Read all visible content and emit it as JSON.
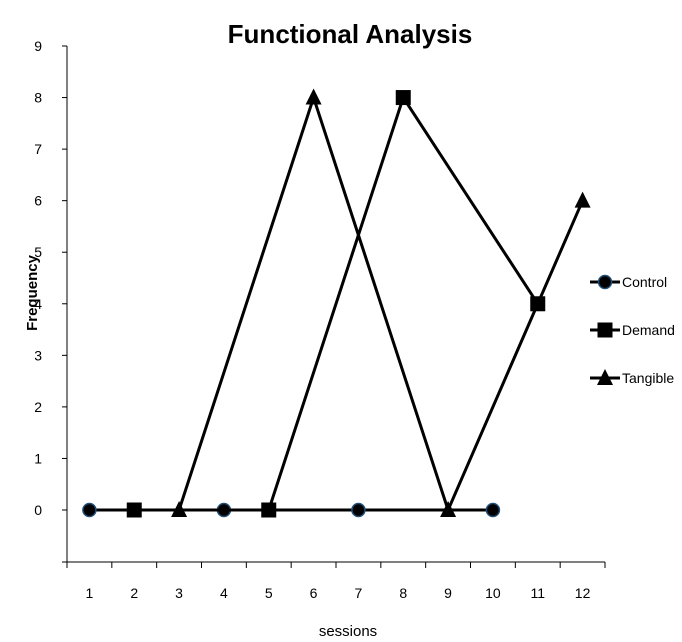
{
  "chart_data": {
    "type": "line",
    "title": "Functional Analysis",
    "xlabel": "sessions",
    "ylabel": "Frequency",
    "x": [
      1,
      2,
      3,
      4,
      5,
      6,
      7,
      8,
      9,
      10,
      11,
      12
    ],
    "xlim": [
      0.5,
      12.5
    ],
    "ylim": [
      0,
      9
    ],
    "yticks": [
      0,
      1,
      2,
      3,
      4,
      5,
      6,
      7,
      8,
      9
    ],
    "grid": false,
    "legend_position": "right",
    "series": [
      {
        "name": "Control",
        "marker": "circle",
        "color": "#000000",
        "marker_fill": "#000000",
        "marker_edge": "#1f4e79",
        "points": [
          [
            1,
            0
          ],
          [
            4,
            0
          ],
          [
            7,
            0
          ],
          [
            10,
            0
          ]
        ]
      },
      {
        "name": "Demand",
        "marker": "square",
        "color": "#000000",
        "marker_fill": "#000000",
        "points": [
          [
            2,
            0
          ],
          [
            5,
            0
          ],
          [
            8,
            8
          ],
          [
            11,
            4
          ]
        ]
      },
      {
        "name": "Tangible",
        "marker": "triangle",
        "color": "#000000",
        "marker_fill": "#000000",
        "points": [
          [
            3,
            0
          ],
          [
            6,
            8
          ],
          [
            9,
            0
          ],
          [
            12,
            6
          ]
        ]
      }
    ]
  }
}
